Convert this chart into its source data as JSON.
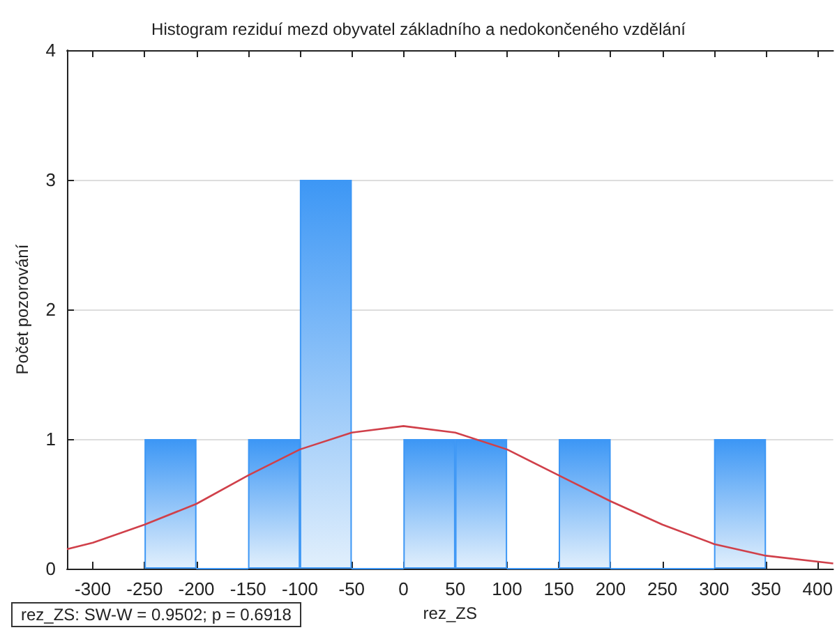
{
  "chart_data": {
    "type": "histogram",
    "title": "Histogram reziduí mezd obyvatel základního a nedokončeného vzdělání",
    "xlabel": "rez_ZS",
    "ylabel": "Počet pozorování",
    "bins": [
      -250,
      -200,
      -150,
      -100,
      -50,
      0,
      50,
      100,
      150,
      200,
      250,
      300,
      350
    ],
    "values": [
      1,
      0,
      1,
      3,
      0,
      1,
      1,
      0,
      1,
      0,
      0,
      1
    ],
    "color": "#3d97f5",
    "series": [
      {
        "type": "line",
        "color": "#d0404a",
        "x": [
          -325,
          -300,
          -250,
          -200,
          -150,
          -100,
          -50,
          0,
          50,
          100,
          150,
          200,
          250,
          300,
          350,
          415
        ],
        "values": [
          0.15,
          0.2,
          0.34,
          0.5,
          0.72,
          0.92,
          1.05,
          1.1,
          1.05,
          0.92,
          0.72,
          0.52,
          0.34,
          0.19,
          0.1,
          0.04
        ]
      }
    ],
    "xlim": [
      -325,
      415
    ],
    "xticks": [
      -300,
      -250,
      -200,
      -150,
      -100,
      -50,
      0,
      50,
      100,
      150,
      200,
      250,
      300,
      350,
      400
    ],
    "ylim": [
      0,
      4
    ],
    "yticks": [
      0,
      1,
      2,
      3,
      4
    ],
    "grid": "y",
    "marker": "none",
    "line_style": "solid",
    "annotations": [
      "rez_ZS:   SW-W = 0.9502; p = 0.6918"
    ]
  }
}
